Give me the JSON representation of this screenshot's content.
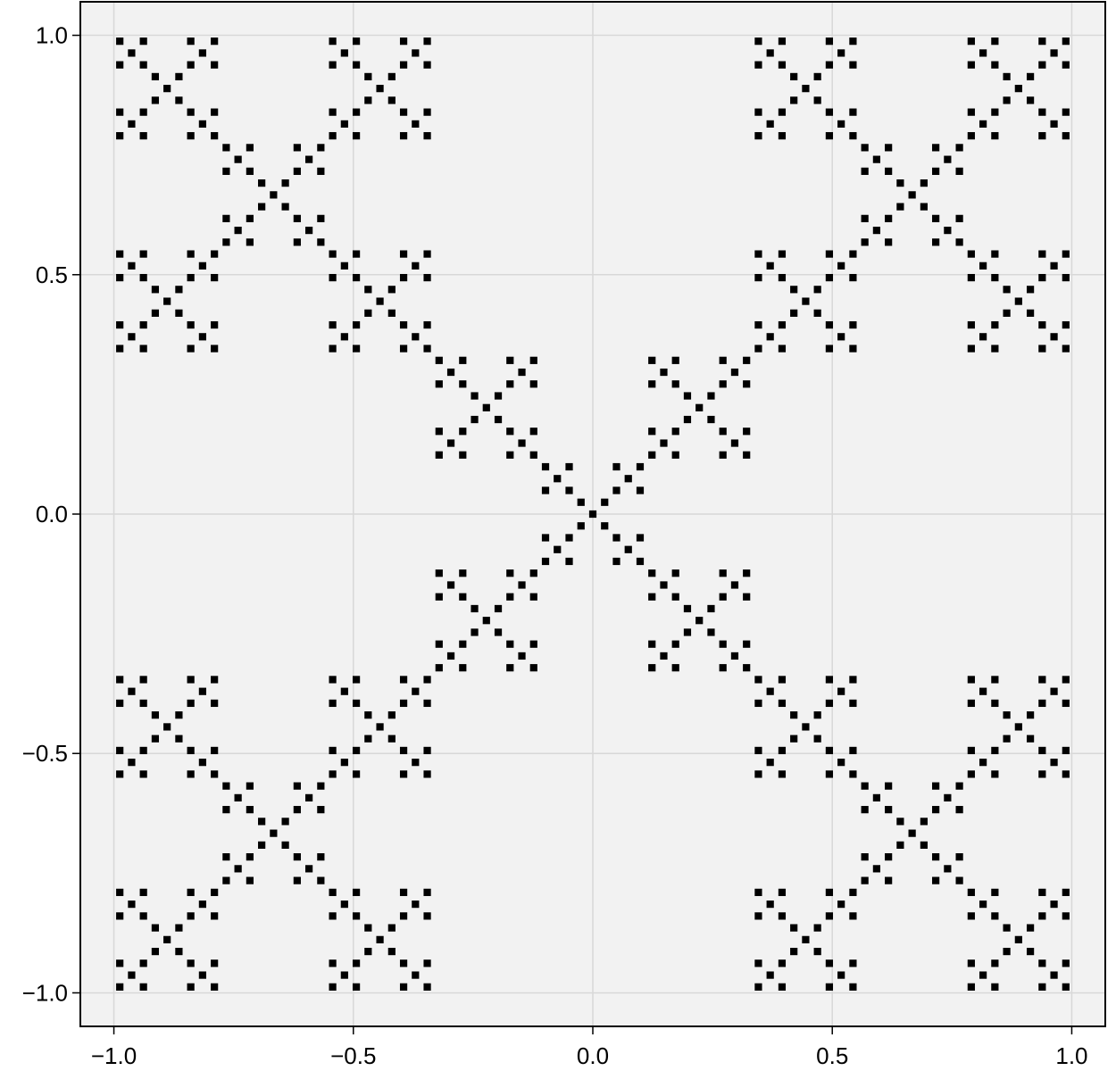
{
  "chart_data": {
    "type": "scatter",
    "title": "",
    "xlabel": "",
    "ylabel": "",
    "xlim": [
      -1.07,
      1.07
    ],
    "ylim": [
      -1.07,
      1.07
    ],
    "xticks": [
      -1.0,
      -0.5,
      0.0,
      0.5,
      1.0
    ],
    "yticks": [
      -1.0,
      -0.5,
      0.0,
      0.5,
      1.0
    ],
    "xtick_labels": [
      "−1.0",
      "−0.5",
      "0.0",
      "0.5",
      "1.0"
    ],
    "ytick_labels": [
      "−1.0",
      "−0.5",
      "0.0",
      "0.5",
      "1.0"
    ],
    "grid": true,
    "legend": "none",
    "marker": "square",
    "series": [
      {
        "description_of_points": "Vicsek-style X fractal: all grid points (x, y) on the lattice spacing 2/81 from -1 to 1 whose base-3 digit pairs of ((x+1)/2, (y+1)/2) are always (0,0), (0,2), (1,1), (2,0) or (2,2)",
        "grid_min": -1.0,
        "grid_max": 1.0,
        "grid_divisions": 81,
        "fractal_depth": 4,
        "allowed_digit_pairs": [
          [
            0,
            0
          ],
          [
            0,
            2
          ],
          [
            1,
            1
          ],
          [
            2,
            0
          ],
          [
            2,
            2
          ]
        ]
      }
    ],
    "colors": {
      "marker": "#000000",
      "plot_background": "#f2f2f2",
      "grid": "#d8d8d8",
      "frame": "#000000"
    }
  }
}
